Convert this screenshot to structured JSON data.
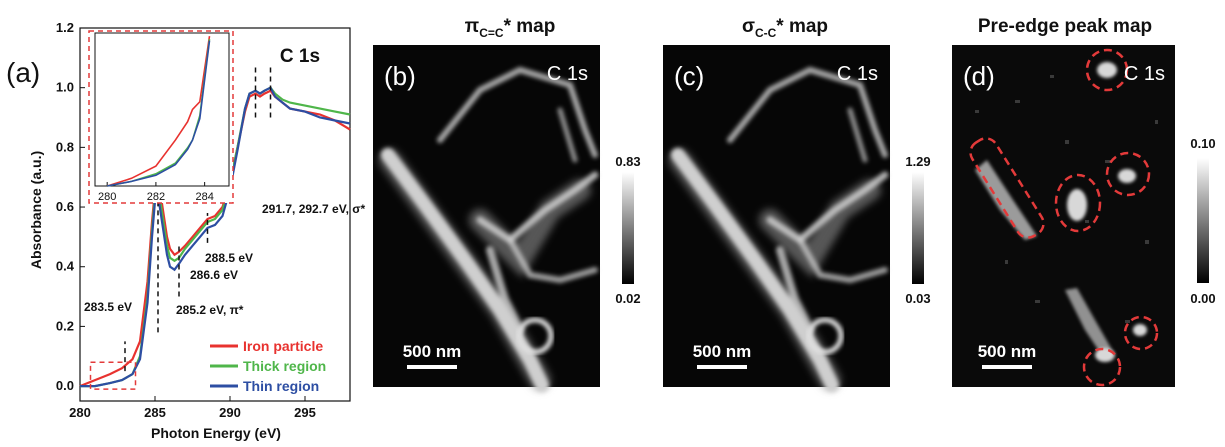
{
  "chart_data": [
    {
      "type": "line",
      "panel_label": "(a)",
      "title": "C 1s",
      "xlabel": "Photon Energy (eV)",
      "ylabel": "Absorbance (a.u.)",
      "xlim": [
        280,
        298
      ],
      "ylim": [
        -0.05,
        1.2
      ],
      "xticks": [
        280,
        285,
        290,
        295
      ],
      "yticks": [
        0.0,
        0.2,
        0.4,
        0.6,
        0.8,
        1.0,
        1.2
      ],
      "legend_position": "lower-right",
      "series": [
        {
          "name": "Iron particle",
          "color": "#e8322f",
          "x": [
            280.0,
            281.0,
            282.0,
            282.8,
            283.5,
            284.0,
            284.5,
            284.8,
            285.0,
            285.2,
            285.5,
            285.8,
            286.0,
            286.3,
            286.6,
            287.0,
            287.5,
            288.0,
            288.5,
            289.0,
            289.5,
            290.0,
            290.5,
            291.0,
            291.3,
            291.7,
            292.0,
            292.3,
            292.7,
            293.0,
            293.5,
            294.0,
            295.0,
            296.0,
            297.0,
            298.0
          ],
          "y": [
            0.0,
            0.02,
            0.04,
            0.06,
            0.09,
            0.15,
            0.35,
            0.55,
            0.66,
            0.7,
            0.6,
            0.5,
            0.46,
            0.44,
            0.45,
            0.47,
            0.5,
            0.53,
            0.56,
            0.57,
            0.6,
            0.68,
            0.8,
            0.92,
            0.97,
            0.98,
            0.97,
            0.98,
            0.99,
            0.97,
            0.95,
            0.93,
            0.92,
            0.91,
            0.89,
            0.86
          ]
        },
        {
          "name": "Thick region",
          "color": "#4fb64a",
          "x": [
            280.0,
            281.0,
            282.0,
            282.8,
            283.5,
            284.0,
            284.5,
            284.8,
            285.0,
            285.2,
            285.5,
            285.8,
            286.0,
            286.3,
            286.6,
            287.0,
            287.5,
            288.0,
            288.5,
            289.0,
            289.5,
            290.0,
            290.5,
            291.0,
            291.3,
            291.7,
            292.0,
            292.3,
            292.7,
            293.0,
            293.5,
            294.0,
            295.0,
            296.0,
            297.0,
            298.0
          ],
          "y": [
            0.0,
            0.0,
            0.01,
            0.02,
            0.04,
            0.1,
            0.3,
            0.52,
            0.64,
            0.67,
            0.57,
            0.47,
            0.43,
            0.42,
            0.43,
            0.46,
            0.49,
            0.52,
            0.55,
            0.56,
            0.59,
            0.68,
            0.8,
            0.93,
            0.98,
            0.99,
            0.98,
            0.99,
            1.0,
            0.98,
            0.96,
            0.95,
            0.94,
            0.93,
            0.92,
            0.91
          ]
        },
        {
          "name": "Thin region",
          "color": "#2d4ea3",
          "x": [
            280.0,
            281.0,
            282.0,
            282.8,
            283.5,
            284.0,
            284.5,
            284.8,
            285.0,
            285.2,
            285.5,
            285.8,
            286.0,
            286.3,
            286.6,
            287.0,
            287.5,
            288.0,
            288.5,
            289.0,
            289.5,
            290.0,
            290.5,
            291.0,
            291.3,
            291.7,
            292.0,
            292.3,
            292.7,
            293.0,
            293.5,
            294.0,
            295.0,
            296.0,
            297.0,
            298.0
          ],
          "y": [
            0.0,
            0.0,
            0.01,
            0.02,
            0.04,
            0.09,
            0.28,
            0.5,
            0.62,
            0.64,
            0.54,
            0.44,
            0.4,
            0.39,
            0.41,
            0.44,
            0.47,
            0.5,
            0.53,
            0.54,
            0.57,
            0.66,
            0.79,
            0.93,
            0.98,
            0.99,
            0.98,
            0.99,
            1.0,
            0.97,
            0.95,
            0.93,
            0.92,
            0.9,
            0.89,
            0.88
          ]
        }
      ],
      "annotations": [
        {
          "text": "283.5 eV",
          "x": 283.0
        },
        {
          "text": "285.2 eV, π*",
          "x": 285.2
        },
        {
          "text": "286.6 eV",
          "x": 286.6
        },
        {
          "text": "288.5 eV",
          "x": 288.5
        },
        {
          "text": "291.7, 292.7 eV, σ*",
          "x": 291.7
        }
      ],
      "inset": {
        "xlim": [
          279.5,
          285
        ],
        "ylim": [
          0,
          1.0
        ],
        "xticks": [
          280,
          282,
          284
        ]
      }
    },
    {
      "type": "heatmap",
      "panel_label": "(b)",
      "title": "π",
      "title_sub": "C=C",
      "title_rest": "* map",
      "corner_label": "C 1s",
      "scale_bar": "500 nm",
      "colorbar_max": "0.83",
      "colorbar_min": "0.02"
    },
    {
      "type": "heatmap",
      "panel_label": "(c)",
      "title": "σ",
      "title_sub": "C-C",
      "title_rest": "* map",
      "corner_label": "C 1s",
      "scale_bar": "500 nm",
      "colorbar_max": "1.29",
      "colorbar_min": "0.03"
    },
    {
      "type": "heatmap",
      "panel_label": "(d)",
      "title": "Pre-edge peak map",
      "corner_label": "C 1s",
      "scale_bar": "500 nm",
      "colorbar_max": "0.10",
      "colorbar_min": "0.00"
    }
  ]
}
